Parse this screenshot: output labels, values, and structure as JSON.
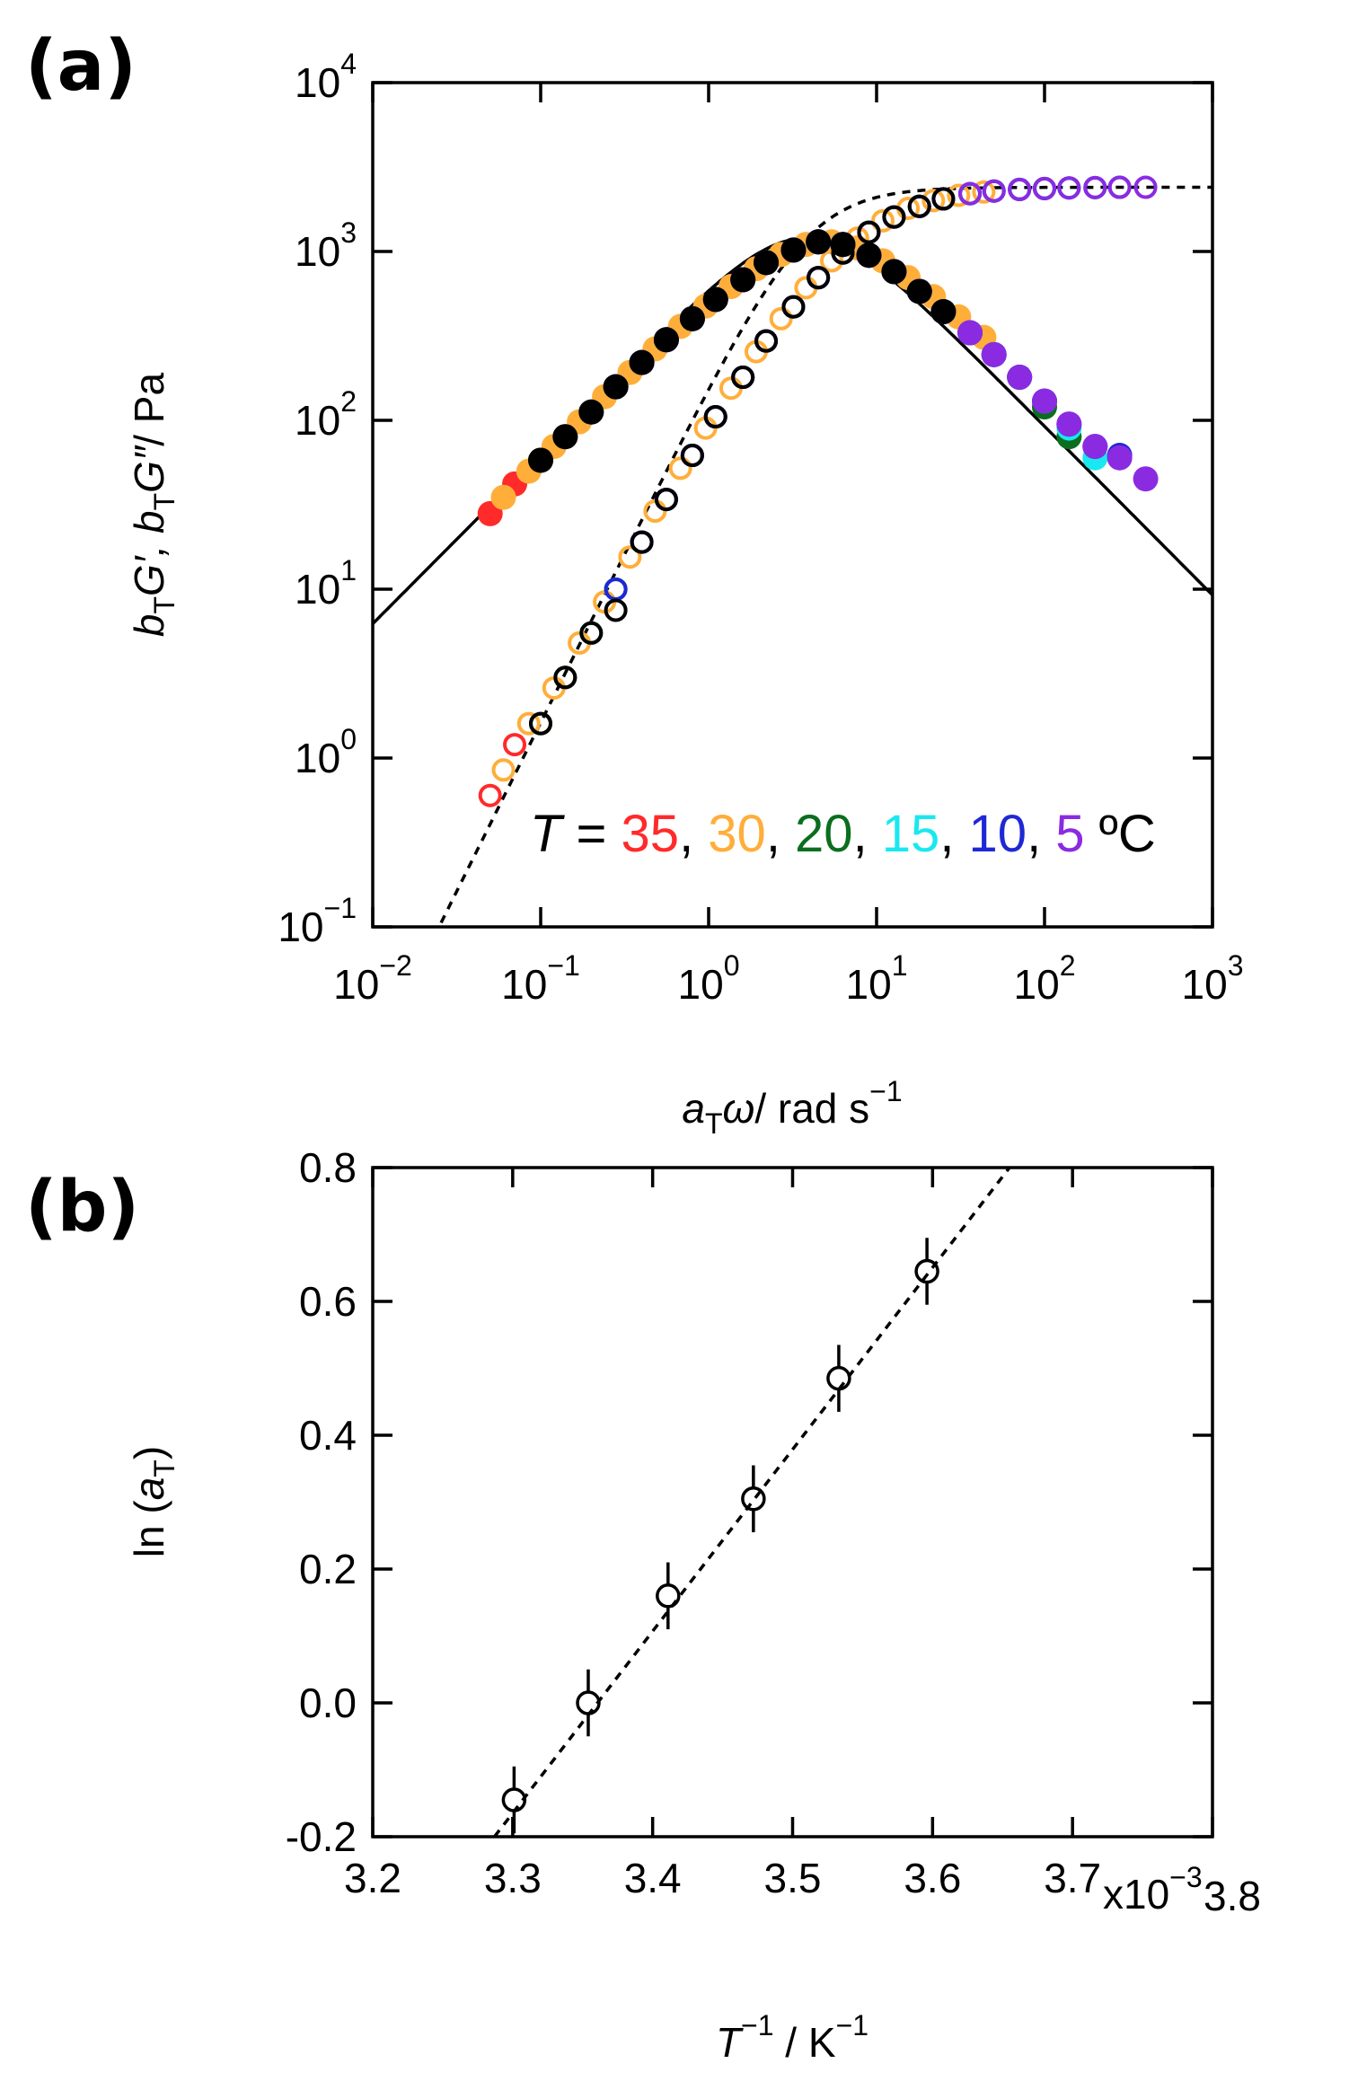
{
  "chart_data": [
    {
      "panel": "(a)",
      "type": "scatter",
      "x_scale": "log",
      "y_scale": "log",
      "xlabel_parts": [
        "a",
        "T",
        "ω",
        "/ rad s",
        "−1"
      ],
      "ylabel_parts": [
        "b",
        "T",
        "G′, ",
        "b",
        "T",
        "G″",
        "/ Pa"
      ],
      "xlim": [
        0.01,
        1000
      ],
      "ylim": [
        0.1,
        10000
      ],
      "x_tick_exponents": [
        "-2",
        "-1",
        "0",
        "1",
        "2",
        "3"
      ],
      "y_tick_exponents": [
        "-1",
        "0",
        "1",
        "2",
        "3",
        "4"
      ],
      "tick_base": "10",
      "legend": {
        "prefix_italic": "T",
        "prefix_rest": " = ",
        "separator": ", ",
        "entries": [
          {
            "label": "35",
            "color": "#ff2a2a"
          },
          {
            "label": "30",
            "color": "#ffae3a"
          },
          {
            "label": "20",
            "color": "#0a6e1e"
          },
          {
            "label": "15",
            "color": "#19e8f0"
          },
          {
            "label": "10",
            "color": "#1e28d4"
          },
          {
            "label": "5",
            "color": "#8a2be2"
          }
        ],
        "unit": " ºC",
        "placement": "bottom-right"
      },
      "model": {
        "G0": 2400,
        "tau": 0.26
      },
      "series": [
        {
          "name": "G′ 35 °C",
          "temp": "35",
          "marker": "open",
          "color": "#ff2a2a",
          "x": [
            0.05,
            0.07,
            0.1,
            0.14,
            0.2,
            0.28,
            0.4,
            0.56,
            0.8,
            1.1,
            1.6,
            2.2,
            3.2,
            4.5,
            6.3,
            9,
            12.7
          ],
          "y": [
            0.6,
            1.2,
            1.6,
            3.0,
            5.5,
            10,
            19,
            34,
            62,
            105,
            180,
            295,
            470,
            700,
            980,
            1300,
            1600
          ]
        },
        {
          "name": "G″ 35 °C",
          "temp": "35",
          "marker": "filled",
          "color": "#ff2a2a",
          "x": [
            0.05,
            0.07,
            0.1,
            0.14,
            0.2,
            0.28,
            0.4,
            0.56,
            0.8,
            1.1,
            1.6,
            2.2,
            3.2,
            4.5,
            6.3,
            9,
            12.7
          ],
          "y": [
            28,
            42,
            58,
            80,
            112,
            158,
            220,
            300,
            400,
            520,
            680,
            860,
            1020,
            1140,
            1100,
            950,
            760
          ]
        },
        {
          "name": "G′ 30 °C",
          "temp": "30",
          "marker": "open",
          "color": "#ffae3a",
          "x": [
            0.06,
            0.085,
            0.12,
            0.17,
            0.24,
            0.34,
            0.48,
            0.68,
            0.96,
            1.36,
            1.92,
            2.7,
            3.8,
            5.4,
            7.7,
            10.9,
            15.4,
            21.8,
            30.8,
            43.5
          ],
          "y": [
            0.85,
            1.6,
            2.6,
            4.8,
            8.4,
            15.5,
            29,
            52,
            90,
            155,
            255,
            400,
            610,
            880,
            1200,
            1520,
            1800,
            2000,
            2150,
            2250
          ]
        },
        {
          "name": "G″ 30 °C",
          "temp": "30",
          "marker": "filled",
          "color": "#ffae3a",
          "x": [
            0.06,
            0.085,
            0.12,
            0.17,
            0.24,
            0.34,
            0.48,
            0.68,
            0.96,
            1.36,
            1.92,
            2.7,
            3.8,
            5.4,
            7.7,
            10.9,
            15.4,
            21.8,
            30.8,
            43.5
          ],
          "y": [
            35,
            50,
            70,
            98,
            138,
            192,
            265,
            360,
            475,
            620,
            790,
            960,
            1100,
            1140,
            1050,
            880,
            700,
            540,
            410,
            310
          ]
        },
        {
          "name": "G′ 20 °C",
          "temp": "20",
          "marker": "open",
          "color": "#0a6e1e",
          "x": [
            0.1,
            0.14,
            0.2,
            0.28,
            0.4,
            0.56,
            0.8,
            1.1,
            1.6,
            2.2,
            3.2,
            4.5,
            6.3,
            9,
            12.7,
            18,
            25,
            36,
            50,
            71,
            100
          ],
          "y": [
            1.6,
            3.0,
            5.5,
            10,
            19,
            34,
            62,
            105,
            180,
            295,
            470,
            700,
            980,
            1300,
            1600,
            1850,
            2050,
            2200,
            2280,
            2330,
            2360
          ]
        },
        {
          "name": "G″ 20 °C",
          "temp": "20",
          "marker": "filled",
          "color": "#0a6e1e",
          "x": [
            0.1,
            0.14,
            0.2,
            0.28,
            0.4,
            0.56,
            0.8,
            1.1,
            1.6,
            2.2,
            3.2,
            4.5,
            6.3,
            9,
            12.7,
            18,
            25,
            36,
            50,
            71,
            100,
            140
          ],
          "y": [
            58,
            80,
            112,
            158,
            220,
            300,
            400,
            520,
            680,
            860,
            1020,
            1140,
            1100,
            950,
            760,
            580,
            440,
            330,
            245,
            180,
            120,
            80
          ]
        },
        {
          "name": "G′ 15 °C",
          "temp": "15",
          "marker": "open",
          "color": "#19e8f0",
          "x": [
            0.2,
            0.28,
            0.4,
            0.56,
            0.8,
            1.1,
            1.6,
            2.2,
            3.2,
            4.5,
            6.3,
            9,
            12.7,
            18,
            25,
            36,
            50,
            71,
            100,
            140,
            200
          ],
          "y": [
            5.5,
            10,
            19,
            34,
            62,
            105,
            180,
            295,
            470,
            700,
            980,
            1300,
            1600,
            1850,
            2050,
            2200,
            2280,
            2330,
            2360,
            2380,
            2390
          ]
        },
        {
          "name": "G″ 15 °C",
          "temp": "15",
          "marker": "filled",
          "color": "#19e8f0",
          "x": [
            0.2,
            0.28,
            0.4,
            0.56,
            0.8,
            1.1,
            1.6,
            2.2,
            3.2,
            4.5,
            6.3,
            9,
            12.7,
            18,
            25,
            36,
            50,
            71,
            100,
            140,
            200
          ],
          "y": [
            112,
            158,
            220,
            300,
            400,
            520,
            680,
            860,
            1020,
            1140,
            1100,
            950,
            760,
            580,
            440,
            330,
            245,
            180,
            130,
            90,
            60
          ]
        },
        {
          "name": "G′ 10 °C",
          "temp": "10",
          "marker": "open",
          "color": "#1e28d4",
          "x": [
            0.28,
            0.4,
            0.56,
            0.8,
            1.1,
            1.6,
            2.2,
            3.2,
            4.5,
            6.3,
            9,
            12.7,
            18,
            25,
            36,
            50,
            71,
            100,
            140,
            200,
            280
          ],
          "y": [
            10,
            19,
            34,
            62,
            105,
            180,
            295,
            470,
            700,
            980,
            1300,
            1600,
            1850,
            2050,
            2200,
            2280,
            2330,
            2360,
            2380,
            2390,
            2400
          ]
        },
        {
          "name": "G″ 10 °C",
          "temp": "10",
          "marker": "filled",
          "color": "#1e28d4",
          "x": [
            0.28,
            0.4,
            0.56,
            0.8,
            1.1,
            1.6,
            2.2,
            3.2,
            4.5,
            6.3,
            9,
            12.7,
            18,
            25,
            36,
            50,
            71,
            100,
            140,
            200,
            280
          ],
          "y": [
            158,
            220,
            300,
            400,
            520,
            680,
            860,
            1020,
            1140,
            1100,
            950,
            760,
            580,
            440,
            330,
            245,
            180,
            130,
            95,
            70,
            62
          ]
        },
        {
          "name": "G′ 5 °C",
          "temp": "5",
          "marker": "open",
          "color": "#8a2be2",
          "x": [
            0.4,
            0.56,
            0.8,
            1.1,
            1.6,
            2.2,
            3.2,
            4.5,
            6.3,
            9,
            12.7,
            18,
            25,
            36,
            50,
            71,
            100,
            140,
            200,
            280,
            400
          ],
          "y": [
            19,
            34,
            62,
            105,
            180,
            295,
            470,
            700,
            980,
            1300,
            1600,
            1850,
            2050,
            2200,
            2280,
            2330,
            2360,
            2380,
            2390,
            2400,
            2400
          ]
        },
        {
          "name": "G″ 5 °C",
          "temp": "5",
          "marker": "filled",
          "color": "#8a2be2",
          "x": [
            0.4,
            0.56,
            0.8,
            1.1,
            1.6,
            2.2,
            3.2,
            4.5,
            6.3,
            9,
            12.7,
            18,
            25,
            36,
            50,
            71,
            100,
            140,
            200,
            280,
            400
          ],
          "y": [
            220,
            300,
            400,
            520,
            680,
            860,
            1020,
            1140,
            1100,
            950,
            760,
            580,
            440,
            330,
            245,
            180,
            130,
            95,
            70,
            60,
            45
          ]
        },
        {
          "name": "G′ reference (black)",
          "temp": "ref",
          "marker": "open",
          "color": "#000000",
          "x": [
            0.1,
            0.14,
            0.2,
            0.28,
            0.4,
            0.56,
            0.8,
            1.1,
            1.6,
            2.2,
            3.2,
            4.5,
            6.3,
            9,
            12.7,
            18,
            25
          ],
          "y": [
            1.6,
            3.0,
            5.5,
            7.5,
            19,
            34,
            62,
            105,
            180,
            295,
            470,
            700,
            980,
            1300,
            1600,
            1850,
            2050
          ]
        },
        {
          "name": "G″ reference (black)",
          "temp": "ref",
          "marker": "filled",
          "color": "#000000",
          "x": [
            0.1,
            0.14,
            0.2,
            0.28,
            0.4,
            0.56,
            0.8,
            1.1,
            1.6,
            2.2,
            3.2,
            4.5,
            6.3,
            9,
            12.7,
            18,
            25
          ],
          "y": [
            58,
            80,
            112,
            158,
            220,
            300,
            400,
            520,
            680,
            860,
            1020,
            1140,
            1100,
            950,
            760,
            580,
            440
          ]
        }
      ]
    },
    {
      "panel": "(b)",
      "type": "scatter",
      "xlabel_parts": [
        "T",
        "−1",
        " / K",
        "−1"
      ],
      "ylabel_parts": [
        "ln (",
        "a",
        "T",
        ")"
      ],
      "xlim": [
        3.2,
        3.8
      ],
      "ylim": [
        -0.2,
        0.8
      ],
      "x_ticks": [
        "3.2",
        "3.3",
        "3.4",
        "3.5",
        "3.6",
        "3.7",
        "3.8"
      ],
      "y_ticks": [
        "-0.2",
        "0.0",
        "0.2",
        "0.4",
        "0.6",
        "0.8"
      ],
      "x_multiplier_text": "x10",
      "x_multiplier_exp": "−3",
      "points": {
        "x": [
          3.301,
          3.354,
          3.411,
          3.472,
          3.533,
          3.596
        ],
        "y": [
          -0.145,
          0.0,
          0.16,
          0.305,
          0.485,
          0.645
        ],
        "error": [
          0.05,
          0.05,
          0.05,
          0.05,
          0.05,
          0.05
        ]
      },
      "fit_line": {
        "x": [
          3.287,
          3.655
        ],
        "y": [
          -0.2,
          0.8
        ],
        "style": "dashed"
      }
    }
  ]
}
